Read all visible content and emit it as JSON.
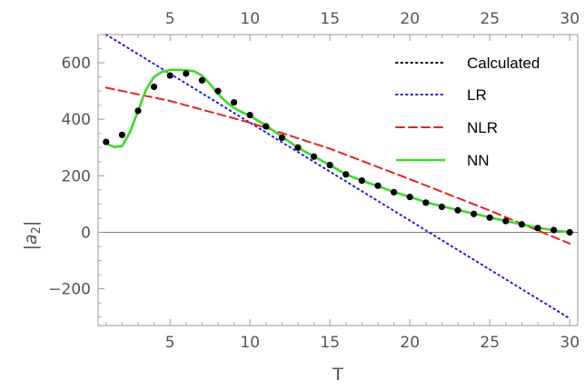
{
  "chart_data": {
    "type": "line",
    "xlabel": "T",
    "ylabel": "|a2|",
    "xlim": [
      0.5,
      30.5
    ],
    "ylim": [
      -330,
      700
    ],
    "x_ticks": [
      5,
      10,
      15,
      20,
      25,
      30
    ],
    "y_ticks": [
      -200,
      0,
      200,
      400,
      600
    ],
    "x_tick_labels": [
      "5",
      "10",
      "15",
      "20",
      "25",
      "30"
    ],
    "y_tick_labels": [
      "−200",
      "0",
      "200",
      "400",
      "600"
    ],
    "legend_position": "top-right",
    "series": [
      {
        "name": "Calculated",
        "style": "dotted",
        "color": "#000000",
        "marker": "dot",
        "x": [
          1,
          2,
          3,
          4,
          5,
          6,
          7,
          8,
          9,
          10,
          11,
          12,
          13,
          14,
          15,
          16,
          17,
          18,
          19,
          20,
          21,
          22,
          23,
          24,
          25,
          26,
          27,
          28,
          29,
          30
        ],
        "y": [
          320,
          345,
          430,
          515,
          555,
          562,
          538,
          500,
          460,
          415,
          375,
          335,
          300,
          268,
          238,
          205,
          183,
          165,
          142,
          125,
          105,
          90,
          78,
          65,
          52,
          40,
          28,
          15,
          8,
          0
        ]
      },
      {
        "name": "LR",
        "style": "dotted",
        "color": "#1f1fdf",
        "x": [
          1,
          30
        ],
        "y": [
          700,
          -305
        ]
      },
      {
        "name": "NLR",
        "style": "dashed",
        "color": "#e8231f",
        "x": [
          1,
          5,
          10,
          15,
          20,
          25,
          30
        ],
        "y": [
          512,
          465,
          388,
          296,
          188,
          77,
          -40
        ]
      },
      {
        "name": "NN",
        "style": "solid",
        "color": "#3bda2a",
        "x": [
          1,
          1.5,
          2,
          2.5,
          3,
          3.5,
          4,
          4.5,
          5,
          5.5,
          6,
          6.5,
          7,
          7.5,
          8,
          8.5,
          9,
          9.5,
          10,
          11,
          12,
          13,
          14,
          15,
          16,
          17,
          18,
          19,
          20,
          21,
          22,
          23,
          24,
          25,
          26,
          27,
          28,
          29,
          30
        ],
        "y": [
          315,
          302,
          305,
          355,
          430,
          505,
          550,
          568,
          575,
          575,
          574,
          570,
          555,
          525,
          490,
          462,
          440,
          425,
          412,
          378,
          338,
          300,
          268,
          238,
          205,
          183,
          163,
          143,
          125,
          107,
          92,
          79,
          66,
          53,
          40,
          28,
          16,
          7,
          0
        ]
      }
    ]
  }
}
